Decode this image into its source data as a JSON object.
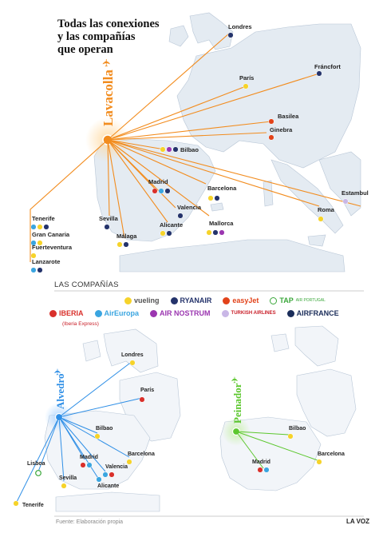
{
  "title": {
    "line1": "Todas las conexiones",
    "line2": "y las compañías",
    "line3": "que operan"
  },
  "section_label": "LAS COMPAÑÍAS",
  "footer": {
    "source": "Fuente: Elaboración propia",
    "brand": "LA VOZ"
  },
  "colors": {
    "main_route": "#f28c1e",
    "alvedro_route": "#2f8fe6",
    "peinador_route": "#5cc72e",
    "land": "#e8edf3",
    "water": "#ffffff"
  },
  "airlines": {
    "vueling": {
      "name": "vueling",
      "color": "#f6d32a"
    },
    "ryanair": {
      "name": "RYANAIR",
      "color": "#24336b"
    },
    "easyjet": {
      "name": "easyJet",
      "color": "#e2431a"
    },
    "tap": {
      "name": "TAP",
      "sub": "AIR PORTUGAL",
      "color": "#3aa73a"
    },
    "iberia": {
      "name": "IBERIA",
      "sub": "(Iberia Express)",
      "color": "#d9302b"
    },
    "aireuropa": {
      "name": "AirEuropa",
      "color": "#3aa5e0"
    },
    "airnostrum": {
      "name": "AIR NOSTRUM",
      "color": "#9b36b0"
    },
    "turkish": {
      "name": "TURKISH AIRLINES",
      "color": "#c9b7e6"
    },
    "airfrance": {
      "name": "AIRFRANCE",
      "color": "#1b2d5a"
    }
  },
  "hubs": {
    "lavacolla": {
      "name": "Lavacolla"
    },
    "alvedro": {
      "name": "Alvedro"
    },
    "peinador": {
      "name": "Peinador"
    }
  },
  "main_map": {
    "cities": [
      {
        "name": "Londres",
        "airlines": [
          "ryanair"
        ]
      },
      {
        "name": "Fráncfort",
        "airlines": [
          "ryanair"
        ]
      },
      {
        "name": "París",
        "airlines": [
          "vueling"
        ]
      },
      {
        "name": "Basilea",
        "airlines": [
          "easyjet"
        ]
      },
      {
        "name": "Ginebra",
        "airlines": [
          "easyjet"
        ]
      },
      {
        "name": "Bilbao",
        "airlines": [
          "vueling",
          "airnostrum",
          "ryanair"
        ]
      },
      {
        "name": "Madrid",
        "airlines": [
          "iberia",
          "aireuropa",
          "ryanair"
        ]
      },
      {
        "name": "Barcelona",
        "airlines": [
          "vueling",
          "ryanair"
        ]
      },
      {
        "name": "Valencia",
        "airlines": [
          "ryanair"
        ]
      },
      {
        "name": "Mallorca",
        "airlines": [
          "vueling",
          "ryanair",
          "airnostrum"
        ]
      },
      {
        "name": "Alicante",
        "airlines": [
          "vueling",
          "ryanair"
        ]
      },
      {
        "name": "Sevilla",
        "airlines": [
          "ryanair"
        ]
      },
      {
        "name": "Málaga",
        "airlines": [
          "vueling",
          "ryanair"
        ]
      },
      {
        "name": "Roma",
        "airlines": [
          "vueling"
        ]
      },
      {
        "name": "Estambul",
        "airlines": [
          "turkish"
        ]
      },
      {
        "name": "Tenerife",
        "airlines": [
          "aireuropa",
          "vueling",
          "ryanair"
        ]
      },
      {
        "name": "Gran Canaria",
        "airlines": [
          "aireuropa",
          "vueling"
        ]
      },
      {
        "name": "Fuerteventura",
        "airlines": [
          "vueling"
        ]
      },
      {
        "name": "Lanzarote",
        "airlines": [
          "aireuropa",
          "ryanair"
        ]
      }
    ]
  },
  "alvedro_map": {
    "cities": [
      {
        "name": "Londres",
        "airlines": [
          "vueling"
        ]
      },
      {
        "name": "París",
        "airlines": [
          "iberia"
        ]
      },
      {
        "name": "Bilbao",
        "airlines": [
          "vueling"
        ]
      },
      {
        "name": "Barcelona",
        "airlines": [
          "vueling"
        ]
      },
      {
        "name": "Lisboa",
        "airlines": [
          "tap"
        ]
      },
      {
        "name": "Madrid",
        "airlines": [
          "iberia",
          "aireuropa"
        ]
      },
      {
        "name": "Valencia",
        "airlines": [
          "aireuropa",
          "iberia"
        ]
      },
      {
        "name": "Sevilla",
        "airlines": [
          "vueling"
        ]
      },
      {
        "name": "Alicante",
        "airlines": [
          "aireuropa"
        ]
      },
      {
        "name": "Tenerife",
        "airlines": [
          "vueling"
        ]
      }
    ]
  },
  "peinador_map": {
    "cities": [
      {
        "name": "Bilbao",
        "airlines": [
          "vueling"
        ]
      },
      {
        "name": "Madrid",
        "airlines": [
          "iberia",
          "aireuropa"
        ]
      },
      {
        "name": "Barcelona",
        "airlines": [
          "vueling"
        ]
      }
    ]
  }
}
